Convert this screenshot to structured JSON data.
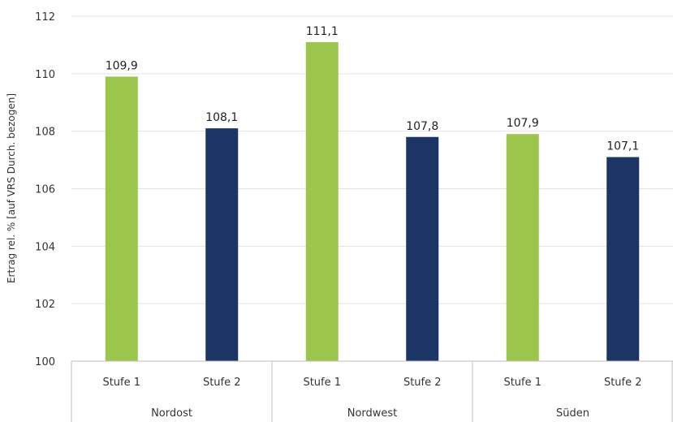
{
  "chart_data": {
    "type": "bar",
    "xlabel": "",
    "ylabel": "Ertrag rel. % [auf VRS Durch. bezogen]",
    "ylim": [
      100,
      112
    ],
    "yticks": [
      100,
      102,
      104,
      106,
      108,
      110,
      112
    ],
    "grid": true,
    "legend": "none",
    "groups": [
      {
        "name": "Nordost",
        "bars": [
          {
            "category": "Stufe 1",
            "value": 109.9,
            "label": "109,9"
          },
          {
            "category": "Stufe 2",
            "value": 108.1,
            "label": "108,1"
          }
        ]
      },
      {
        "name": "Nordwest",
        "bars": [
          {
            "category": "Stufe 1",
            "value": 111.1,
            "label": "111,1"
          },
          {
            "category": "Stufe 2",
            "value": 107.8,
            "label": "107,8"
          }
        ]
      },
      {
        "name": "Süden",
        "bars": [
          {
            "category": "Stufe 1",
            "value": 107.9,
            "label": "107,9"
          },
          {
            "category": "Stufe 2",
            "value": 107.1,
            "label": "107,1"
          }
        ]
      }
    ],
    "colors": {
      "Stufe 1": "#9bc54b",
      "Stufe 2": "#1a3566"
    }
  }
}
